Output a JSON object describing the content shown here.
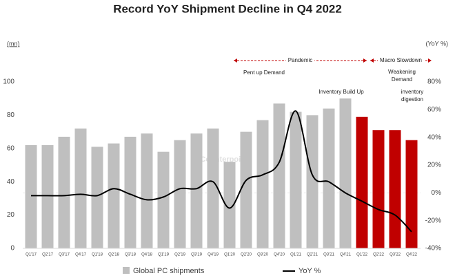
{
  "chart_data": {
    "type": "bar_line",
    "title": "Record YoY Shipment Decline in Q4 2022",
    "y_label": "(mn)",
    "y2_label": "(YoY %)",
    "categories": [
      "Q1'17",
      "Q2'17",
      "Q3'17",
      "Q4'17",
      "Q1'18",
      "Q2'18",
      "Q3'18",
      "Q4'18",
      "Q1'19",
      "Q2'19",
      "Q3'19",
      "Q4'19",
      "Q1'20",
      "Q2'20",
      "Q3'20",
      "Q4'20",
      "Q1'21",
      "Q2'21",
      "Q3'21",
      "Q4'21",
      "Q1'22",
      "Q2'22",
      "Q3'22",
      "Q4'22"
    ],
    "series": [
      {
        "name": "Global PC shipments",
        "type": "bar",
        "color": "#bfbfbf",
        "bar_colors": [
          "#bfbfbf",
          "#bfbfbf",
          "#bfbfbf",
          "#bfbfbf",
          "#bfbfbf",
          "#bfbfbf",
          "#bfbfbf",
          "#bfbfbf",
          "#bfbfbf",
          "#bfbfbf",
          "#bfbfbf",
          "#bfbfbf",
          "#bfbfbf",
          "#bfbfbf",
          "#bfbfbf",
          "#bfbfbf",
          "#bfbfbf",
          "#bfbfbf",
          "#bfbfbf",
          "#bfbfbf",
          "#c00000",
          "#c00000",
          "#c00000",
          "#c00000"
        ],
        "values": [
          62,
          62,
          67,
          72,
          61,
          63,
          67,
          69,
          58,
          65,
          69,
          72,
          52,
          70,
          77,
          87,
          82,
          80,
          84,
          90,
          79,
          71,
          71,
          65
        ]
      },
      {
        "name": "YoY %",
        "type": "line",
        "axis": "y2",
        "color": "#000000",
        "values": [
          -2,
          -2,
          -2,
          -1,
          -2,
          3,
          -1,
          -5,
          -3,
          3,
          3,
          8,
          -11,
          9,
          13,
          22,
          59,
          13,
          8,
          0,
          -6,
          -12,
          -16,
          -28
        ]
      }
    ],
    "ylim": [
      0,
      100
    ],
    "yticks": [
      0,
      20,
      40,
      60,
      80,
      100
    ],
    "y2lim": [
      -40,
      80
    ],
    "y2ticks": [
      {
        "value": -40,
        "label": "-40%"
      },
      {
        "value": -20,
        "label": "-20%"
      },
      {
        "value": 0,
        "label": "0%"
      },
      {
        "value": 20,
        "label": "20%"
      },
      {
        "value": 40,
        "label": "40%"
      },
      {
        "value": 60,
        "label": "60%"
      },
      {
        "value": 80,
        "label": "80%"
      }
    ],
    "periods": [
      "Pandemic",
      "Macro Slowdown"
    ],
    "annotations": [
      "Pent up Demand",
      "Inventory Build Up",
      "Weakening Demand",
      "inventory digestion"
    ],
    "watermark": "Counterpoint",
    "legend": "bottom"
  }
}
